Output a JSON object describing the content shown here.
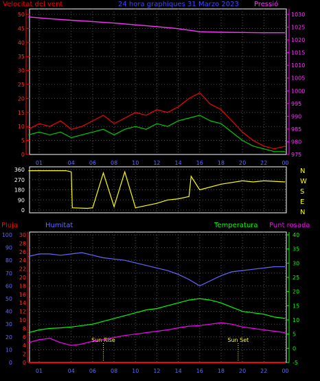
{
  "chart_data": [
    {
      "type": "line",
      "title": "24 hora graphiques 31 Marzo 2023",
      "left_axis_label": "Velocitat del vent",
      "right_axis_label": "Pressió",
      "x_ticks": [
        "01",
        "04",
        "06",
        "08",
        "10",
        "12",
        "14",
        "16",
        "18",
        "20",
        "22",
        "00"
      ],
      "left_ticks": [
        0,
        5,
        10,
        15,
        20,
        25,
        30,
        35,
        40,
        45,
        50
      ],
      "right_ticks": [
        975,
        980,
        985,
        990,
        995,
        1000,
        1005,
        1010,
        1015,
        1020,
        1025,
        1030
      ],
      "ylim_left": [
        0,
        50
      ],
      "ylim_right": [
        975,
        1030
      ],
      "grid": true,
      "series": [
        {
          "key": "pressure",
          "axis": "right",
          "color": "#ff33ff",
          "x": [
            0,
            2,
            4,
            6,
            8,
            10,
            12,
            14,
            16,
            18,
            20,
            22,
            24
          ],
          "y": [
            1029,
            1028.3,
            1027.7,
            1027.2,
            1026.6,
            1025.9,
            1025.2,
            1024.4,
            1023.2,
            1023,
            1022.9,
            1022.8,
            1022.8
          ]
        },
        {
          "key": "gust",
          "axis": "left",
          "color": "#ff0000",
          "x": [
            0,
            1,
            2,
            3,
            4,
            5,
            6,
            7,
            8,
            9,
            10,
            11,
            12,
            13,
            14,
            15,
            16,
            17,
            18,
            19,
            20,
            21,
            22,
            23,
            24
          ],
          "y": [
            9,
            11,
            10,
            12,
            9,
            10,
            12,
            14,
            11,
            13,
            15,
            14,
            16,
            15,
            17,
            20,
            22,
            18,
            16,
            12,
            8,
            5,
            3,
            2,
            3
          ]
        },
        {
          "key": "wind",
          "axis": "left",
          "color": "#00cc00",
          "x": [
            0,
            1,
            2,
            3,
            4,
            5,
            6,
            7,
            8,
            9,
            10,
            11,
            12,
            13,
            14,
            15,
            16,
            17,
            18,
            19,
            20,
            21,
            22,
            23,
            24
          ],
          "y": [
            7,
            8,
            7,
            8,
            6,
            7,
            8,
            9,
            7,
            9,
            10,
            9,
            11,
            10,
            12,
            13,
            14,
            12,
            11,
            8,
            5,
            3,
            2,
            1,
            1
          ]
        }
      ]
    },
    {
      "type": "line",
      "right_labels": [
        "N",
        "W",
        "S",
        "E",
        "N"
      ],
      "left_ticks": [
        360,
        270,
        180,
        90,
        0
      ],
      "ylim": [
        0,
        360
      ],
      "series": [
        {
          "key": "direction",
          "color": "#ffff00",
          "x": [
            0,
            3.5,
            4.0,
            4.1,
            5.5,
            6.0,
            7.0,
            8.0,
            9.0,
            10.0,
            12.0,
            13.0,
            14.0,
            15.0,
            15.2,
            16.0,
            18.0,
            20.0,
            21.0,
            22.0,
            24.0
          ],
          "y": [
            350,
            350,
            340,
            20,
            15,
            20,
            330,
            30,
            340,
            20,
            60,
            90,
            100,
            120,
            300,
            180,
            230,
            260,
            250,
            260,
            250
          ]
        }
      ]
    },
    {
      "type": "line",
      "left_label_1": "Pluja",
      "left_label_2": "Humitat",
      "right_label_1": "Temperatura",
      "right_label_2": "Punt rosada",
      "humidity_ticks": [
        0,
        10,
        20,
        30,
        40,
        50,
        60,
        70,
        80,
        90,
        100
      ],
      "rain_ticks": [
        0,
        2,
        4,
        6,
        8,
        10,
        12,
        14,
        16,
        18,
        20,
        22,
        24,
        26,
        28,
        30
      ],
      "temp_ticks": [
        -5,
        0,
        5,
        10,
        15,
        20,
        25,
        30,
        35,
        40
      ],
      "x_ticks": [
        "01",
        "04",
        "06",
        "08",
        "10",
        "12",
        "14",
        "16",
        "18",
        "20",
        "22",
        "00"
      ],
      "ylim_humidity": [
        0,
        100
      ],
      "ylim_temp": [
        -5,
        40
      ],
      "annotations": [
        {
          "text": "Sun Rise",
          "x": 7.0
        },
        {
          "text": "Sun Set",
          "x": 19.6
        }
      ],
      "series": [
        {
          "key": "humidity",
          "axis": "humidity",
          "color": "#6666ff",
          "x": [
            0,
            1,
            2,
            3,
            4,
            5,
            6,
            7,
            8,
            9,
            10,
            11,
            12,
            13,
            14,
            15,
            16,
            17,
            18,
            19,
            20,
            21,
            22,
            23,
            24
          ],
          "y": [
            83,
            85,
            85,
            84,
            85,
            86,
            84,
            82,
            81,
            80,
            78,
            76,
            74,
            72,
            69,
            65,
            60,
            64,
            68,
            71,
            72,
            73,
            74,
            75,
            75
          ]
        },
        {
          "key": "temperature",
          "axis": "temp",
          "color": "#00ff00",
          "x": [
            0,
            1,
            2,
            3,
            4,
            5,
            6,
            7,
            8,
            9,
            10,
            11,
            12,
            13,
            14,
            15,
            16,
            17,
            18,
            19,
            20,
            21,
            22,
            23,
            24
          ],
          "y": [
            5.5,
            6.5,
            7,
            7.2,
            7.5,
            8,
            8.5,
            9.5,
            10.5,
            11.5,
            12.5,
            13.5,
            14,
            15,
            16,
            17,
            17.5,
            17,
            16,
            14.5,
            13,
            12.5,
            12,
            11,
            10.5
          ]
        },
        {
          "key": "dewpoint",
          "axis": "temp",
          "color": "#ff00ff",
          "x": [
            0,
            1,
            2,
            3,
            4,
            5,
            6,
            7,
            8,
            9,
            10,
            11,
            12,
            13,
            14,
            15,
            16,
            17,
            18,
            19,
            20,
            21,
            22,
            23,
            24
          ],
          "y": [
            2,
            3,
            3.5,
            2,
            1,
            1.5,
            2.5,
            3,
            3.8,
            4.5,
            5,
            5.5,
            6,
            6.5,
            7.2,
            7.8,
            8,
            8.5,
            9,
            8.5,
            7.5,
            7,
            6.5,
            6,
            5.5
          ]
        },
        {
          "key": "rain",
          "axis": "rain",
          "color": "#ff0000",
          "x": [
            0,
            24
          ],
          "y": [
            0,
            0
          ]
        }
      ]
    }
  ]
}
